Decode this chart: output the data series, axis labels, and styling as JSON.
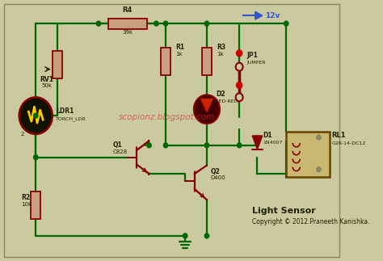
{
  "bg_color": "#cac9a0",
  "watermark": "scopionz.blogspot.com",
  "caption_line1": "Light Sensor",
  "caption_line2": "Copyright © 2012.Praneeth Kanishka.",
  "wire_color": "#006600",
  "component_color": "#880000",
  "label_color": "#222200",
  "relay_fill": "#c8b870",
  "watermark_color": "#cc3333",
  "v12_color": "#3355cc",
  "res_fill": "#c8a080"
}
